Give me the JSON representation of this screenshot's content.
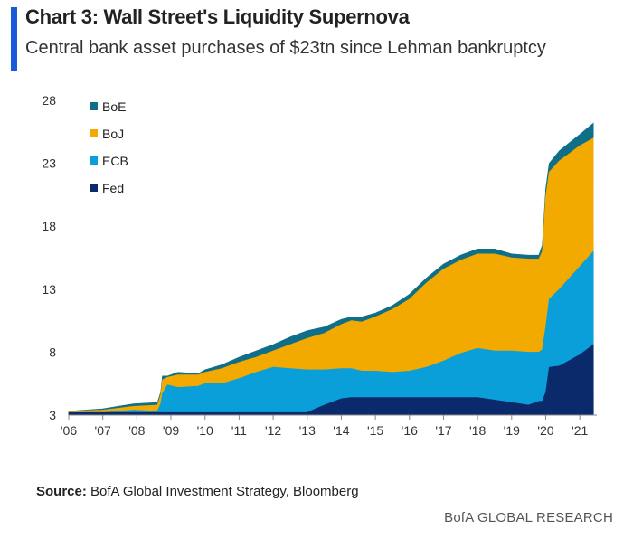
{
  "header": {
    "title": "Chart 3: Wall Street's Liquidity Supernova",
    "subtitle": "Central bank asset purchases of $23tn since Lehman bankruptcy"
  },
  "footer": {
    "source_label": "Source:",
    "source_text": "BofA Global Investment Strategy, Bloomberg",
    "brand": "BofA GLOBAL RESEARCH"
  },
  "chart_data": {
    "type": "area",
    "stacked": true,
    "x_unit": "year",
    "ylim": [
      3,
      28
    ],
    "yticks": [
      3,
      8,
      13,
      18,
      23,
      28
    ],
    "xlim": [
      2006,
      2021.5
    ],
    "xticks": [
      {
        "x": 2006,
        "label": "'06"
      },
      {
        "x": 2007,
        "label": "'07"
      },
      {
        "x": 2008,
        "label": "'08"
      },
      {
        "x": 2009,
        "label": "'09"
      },
      {
        "x": 2010,
        "label": "'10"
      },
      {
        "x": 2011,
        "label": "'11"
      },
      {
        "x": 2012,
        "label": "'12"
      },
      {
        "x": 2013,
        "label": "'13"
      },
      {
        "x": 2014,
        "label": "'14"
      },
      {
        "x": 2015,
        "label": "'15"
      },
      {
        "x": 2016,
        "label": "'16"
      },
      {
        "x": 2017,
        "label": "'17"
      },
      {
        "x": 2018,
        "label": "'18"
      },
      {
        "x": 2019,
        "label": "'19"
      },
      {
        "x": 2020,
        "label": "'20"
      },
      {
        "x": 2021,
        "label": "'21"
      }
    ],
    "legend_position": "top-left",
    "x": [
      2006.0,
      2007.0,
      2007.9,
      2008.6,
      2008.7,
      2008.75,
      2008.9,
      2009.2,
      2009.8,
      2010.0,
      2010.5,
      2011.0,
      2011.5,
      2012.0,
      2012.5,
      2013.0,
      2013.5,
      2014.0,
      2014.3,
      2014.6,
      2015.0,
      2015.5,
      2016.0,
      2016.5,
      2017.0,
      2017.5,
      2018.0,
      2018.5,
      2019.0,
      2019.5,
      2019.8,
      2019.9,
      2020.0,
      2020.1,
      2020.4,
      2021.0,
      2021.4
    ],
    "series": [
      {
        "name": "Fed",
        "color": "#0b2a6b",
        "values": [
          3.2,
          3.2,
          3.2,
          3.2,
          3.2,
          3.2,
          3.2,
          3.2,
          3.2,
          3.2,
          3.2,
          3.2,
          3.2,
          3.2,
          3.2,
          3.2,
          3.8,
          4.3,
          4.4,
          4.4,
          4.4,
          4.4,
          4.4,
          4.4,
          4.4,
          4.4,
          4.4,
          4.2,
          4.0,
          3.8,
          4.1,
          4.1,
          4.8,
          6.8,
          6.9,
          7.8,
          8.6
        ]
      },
      {
        "name": "ECB",
        "color": "#0a9fd8",
        "values": [
          3.2,
          3.2,
          3.4,
          3.3,
          3.9,
          4.7,
          5.4,
          5.2,
          5.3,
          5.5,
          5.5,
          5.9,
          6.4,
          6.8,
          6.7,
          6.6,
          6.6,
          6.7,
          6.7,
          6.5,
          6.5,
          6.4,
          6.5,
          6.8,
          7.3,
          7.9,
          8.3,
          8.1,
          8.1,
          8.0,
          8.0,
          8.2,
          10.0,
          12.2,
          13.0,
          14.8,
          16.0
        ]
      },
      {
        "name": "BoJ",
        "color": "#f2a900",
        "values": [
          3.3,
          3.4,
          3.7,
          3.8,
          4.6,
          5.8,
          6.0,
          6.2,
          6.2,
          6.4,
          6.7,
          7.2,
          7.6,
          8.1,
          8.6,
          9.1,
          9.5,
          10.2,
          10.5,
          10.4,
          10.8,
          11.4,
          12.2,
          13.5,
          14.6,
          15.3,
          15.8,
          15.8,
          15.5,
          15.4,
          15.4,
          16.0,
          20.4,
          22.3,
          23.2,
          24.4,
          25.0
        ]
      },
      {
        "name": "BoE",
        "color": "#0f6f88",
        "values": [
          3.3,
          3.5,
          3.9,
          4.0,
          4.8,
          6.1,
          6.1,
          6.4,
          6.3,
          6.6,
          7.0,
          7.6,
          8.1,
          8.6,
          9.2,
          9.7,
          10.0,
          10.6,
          10.8,
          10.8,
          11.1,
          11.7,
          12.6,
          13.9,
          15.0,
          15.7,
          16.2,
          16.2,
          15.8,
          15.7,
          15.7,
          16.5,
          21.0,
          23.0,
          24.0,
          25.3,
          26.2
        ]
      }
    ]
  }
}
